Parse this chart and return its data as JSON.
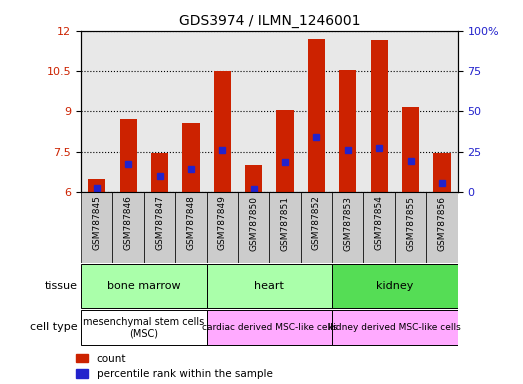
{
  "title": "GDS3974 / ILMN_1246001",
  "samples": [
    "GSM787845",
    "GSM787846",
    "GSM787847",
    "GSM787848",
    "GSM787849",
    "GSM787850",
    "GSM787851",
    "GSM787852",
    "GSM787853",
    "GSM787854",
    "GSM787855",
    "GSM787856"
  ],
  "bar_heights": [
    6.5,
    8.7,
    7.45,
    8.55,
    10.5,
    7.0,
    9.05,
    11.7,
    10.55,
    11.65,
    9.15,
    7.45
  ],
  "blue_dot_y": [
    6.15,
    7.05,
    6.6,
    6.85,
    7.55,
    6.12,
    7.1,
    8.05,
    7.55,
    7.65,
    7.15,
    6.35
  ],
  "bar_color": "#cc2200",
  "dot_color": "#2222cc",
  "ylim_low": 6,
  "ylim_high": 12,
  "yticks_left": [
    6,
    7.5,
    9,
    10.5,
    12
  ],
  "yticks_right_vals": [
    0,
    25,
    50,
    75,
    100
  ],
  "yticks_right_labels": [
    "0",
    "25",
    "50",
    "75",
    "100%"
  ],
  "left_ycolor": "#cc2200",
  "right_ycolor": "#2222cc",
  "tissue_labels": [
    "bone marrow",
    "heart",
    "kidney"
  ],
  "tissue_colors": [
    "#aaffaa",
    "#aaffaa",
    "#55dd55"
  ],
  "tissue_ranges": [
    [
      0,
      3
    ],
    [
      4,
      7
    ],
    [
      8,
      11
    ]
  ],
  "cell_labels": [
    "mesenchymal stem cells\n(MSC)",
    "cardiac derived MSC-like cells",
    "kidney derived MSC-like cells"
  ],
  "cell_colors": [
    "#ffffff",
    "#ffaaff",
    "#ffaaff"
  ],
  "cell_ranges": [
    [
      0,
      3
    ],
    [
      4,
      7
    ],
    [
      8,
      11
    ]
  ],
  "tissue_row_label": "tissue",
  "cell_row_label": "cell type",
  "legend_count": "count",
  "legend_pct": "percentile rank within the sample",
  "bar_width": 0.55,
  "sample_box_color": "#cccccc"
}
